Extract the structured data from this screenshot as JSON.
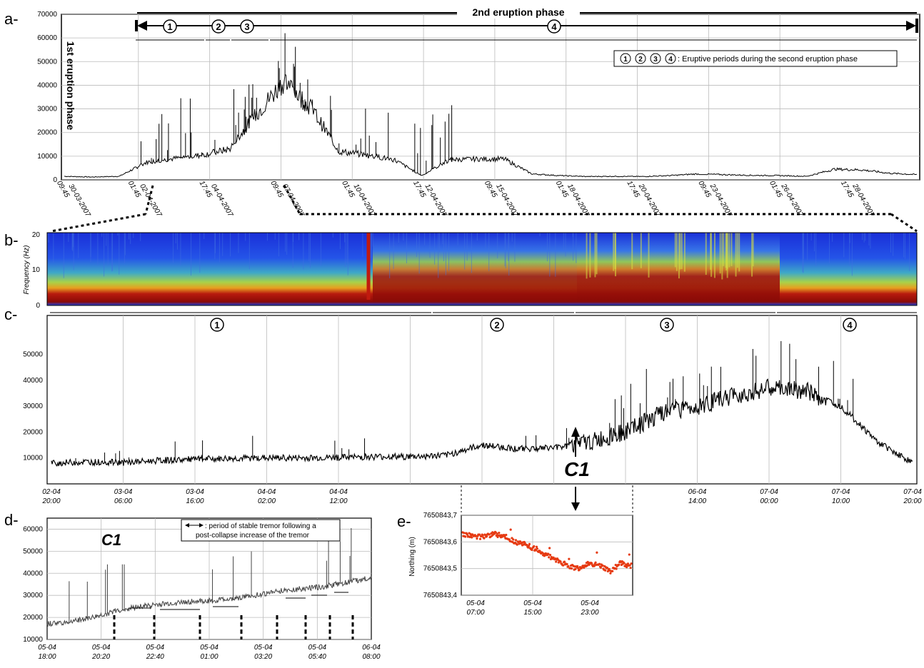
{
  "panels": {
    "a": {
      "letter": "a-",
      "first_phase_label": "1st eruption phase",
      "second_phase_label": "2nd eruption phase",
      "periods": [
        "1",
        "2",
        "3",
        "4"
      ],
      "legend": ": Eruptive periods during the second eruption phase",
      "legend_symbols": [
        "1",
        "2",
        "3",
        "4"
      ]
    },
    "b": {
      "letter": "b-",
      "ylabel": "Frequency (Hz)",
      "yticks": [
        "20",
        "10",
        "0"
      ]
    },
    "c": {
      "letter": "c-",
      "periods": [
        "1",
        "2",
        "3",
        "4"
      ],
      "annotation": "C1"
    },
    "d": {
      "letter": "d-",
      "annotation": "C1",
      "legend_line1": ": period of stable tremor following a",
      "legend_line2": "post-collapse increase of the tremor"
    },
    "e": {
      "letter": "e-",
      "ylabel": "Northing (m)"
    }
  },
  "chart_data": [
    {
      "type": "line",
      "panel": "a",
      "ylim": [
        0,
        70000
      ],
      "yticks": [
        0,
        10000,
        20000,
        30000,
        40000,
        50000,
        60000,
        70000
      ],
      "xticks": [
        [
          "30-03-2007",
          "09:45"
        ],
        [
          "02-04-2007",
          "01:45"
        ],
        [
          "04-04-2007",
          "17:45"
        ],
        [
          "07-04-2007",
          "09:45"
        ],
        [
          "10-04-2007",
          "01:45"
        ],
        [
          "12-04-2007",
          "17:45"
        ],
        [
          "15-04-2007",
          "09:45"
        ],
        [
          "18-04-2007",
          "01:45"
        ],
        [
          "20-04-2007",
          "17:45"
        ],
        [
          "23-04-2007",
          "09:45"
        ],
        [
          "26-04-2007",
          "01:45"
        ],
        [
          "28-04-2007",
          "17:45"
        ]
      ],
      "x_days": [
        0,
        1,
        2,
        3,
        4,
        5,
        6,
        7,
        8,
        9,
        10,
        11,
        12,
        13,
        14,
        15,
        16,
        17,
        18,
        19,
        20,
        21,
        22,
        23,
        24,
        25,
        26,
        27,
        28,
        29,
        30,
        31
      ],
      "series": [
        {
          "values": [
            1500,
            1200,
            1500,
            7500,
            9000,
            10500,
            13000,
            28000,
            42000,
            30000,
            12000,
            10500,
            8500,
            1800,
            8500,
            8800,
            8800,
            2500,
            1800,
            1400,
            1500,
            1400,
            1800,
            2500,
            2200,
            1900,
            1800,
            1500,
            4500,
            4200,
            2800,
            2200
          ]
        }
      ],
      "grid": true
    },
    {
      "type": "heatmap",
      "panel": "b",
      "ylim": [
        0,
        20
      ],
      "description_free": true
    },
    {
      "type": "line",
      "panel": "c",
      "ylim": [
        0,
        65000
      ],
      "yticks": [
        10000,
        20000,
        30000,
        40000,
        50000
      ],
      "xticks": [
        [
          "02-04",
          "20:00"
        ],
        [
          "03-04",
          "06:00"
        ],
        [
          "03-04",
          "16:00"
        ],
        [
          "04-04",
          "02:00"
        ],
        [
          "04-04",
          "12:00"
        ],
        [
          "",
          ""
        ],
        [
          "",
          ""
        ],
        [
          "",
          ""
        ],
        [
          "",
          ""
        ],
        [
          "06-04",
          "14:00"
        ],
        [
          "07-04",
          "00:00"
        ],
        [
          "07-04",
          "10:00"
        ],
        [
          "07-04",
          "20:00"
        ]
      ],
      "x_hours": [
        0,
        5,
        10,
        15,
        20,
        25,
        30,
        35,
        40,
        45,
        50,
        55,
        60,
        65,
        70,
        75,
        80,
        85,
        90,
        95,
        100,
        105,
        110,
        115,
        120
      ],
      "series": [
        {
          "values": [
            8000,
            8500,
            8200,
            9000,
            9500,
            9800,
            10000,
            10000,
            10200,
            10500,
            10500,
            11000,
            15000,
            13500,
            14000,
            16000,
            20000,
            27000,
            30000,
            34000,
            37000,
            36000,
            30000,
            16500,
            8000
          ]
        }
      ],
      "grid": true
    },
    {
      "type": "line",
      "panel": "d",
      "ylim": [
        10000,
        65000
      ],
      "yticks": [
        10000,
        20000,
        30000,
        40000,
        50000,
        60000
      ],
      "xticks": [
        [
          "05-04",
          "18:00"
        ],
        [
          "05-04",
          "20:20"
        ],
        [
          "05-04",
          "22:40"
        ],
        [
          "05-04",
          "01:00"
        ],
        [
          "05-04",
          "03:20"
        ],
        [
          "05-04",
          "05:40"
        ],
        [
          "06-04",
          "08:00"
        ]
      ],
      "x_hours": [
        0,
        1,
        2,
        3,
        4,
        5,
        6,
        7,
        8,
        9,
        10,
        11,
        12,
        13,
        14
      ],
      "series": [
        {
          "values": [
            17000,
            18000,
            20000,
            23000,
            25000,
            26000,
            27000,
            27500,
            28500,
            30000,
            32000,
            33000,
            34000,
            36000,
            38000
          ]
        }
      ],
      "grid": true
    },
    {
      "type": "scatter",
      "panel": "e",
      "ylim": [
        7650843.4,
        7650843.7
      ],
      "yticks": [
        "7650843,4",
        "7650843,5",
        "7650843,6",
        "7650843,7"
      ],
      "xticks": [
        [
          "05-04",
          "07:00"
        ],
        [
          "05-04",
          "15:00"
        ],
        [
          "05-04",
          "23:00"
        ]
      ],
      "x_hours": [
        0,
        2,
        4,
        6,
        8,
        10,
        12,
        14,
        16,
        18,
        20,
        22,
        24,
        26,
        28,
        30,
        32
      ],
      "series": [
        {
          "values": [
            7650843.63,
            7650843.62,
            7650843.62,
            7650843.63,
            7650843.62,
            7650843.6,
            7650843.59,
            7650843.57,
            7650843.55,
            7650843.53,
            7650843.51,
            7650843.5,
            7650843.52,
            7650843.51,
            7650843.49,
            7650843.52,
            7650843.51
          ]
        }
      ],
      "color": "#e63a12",
      "grid": true
    }
  ]
}
